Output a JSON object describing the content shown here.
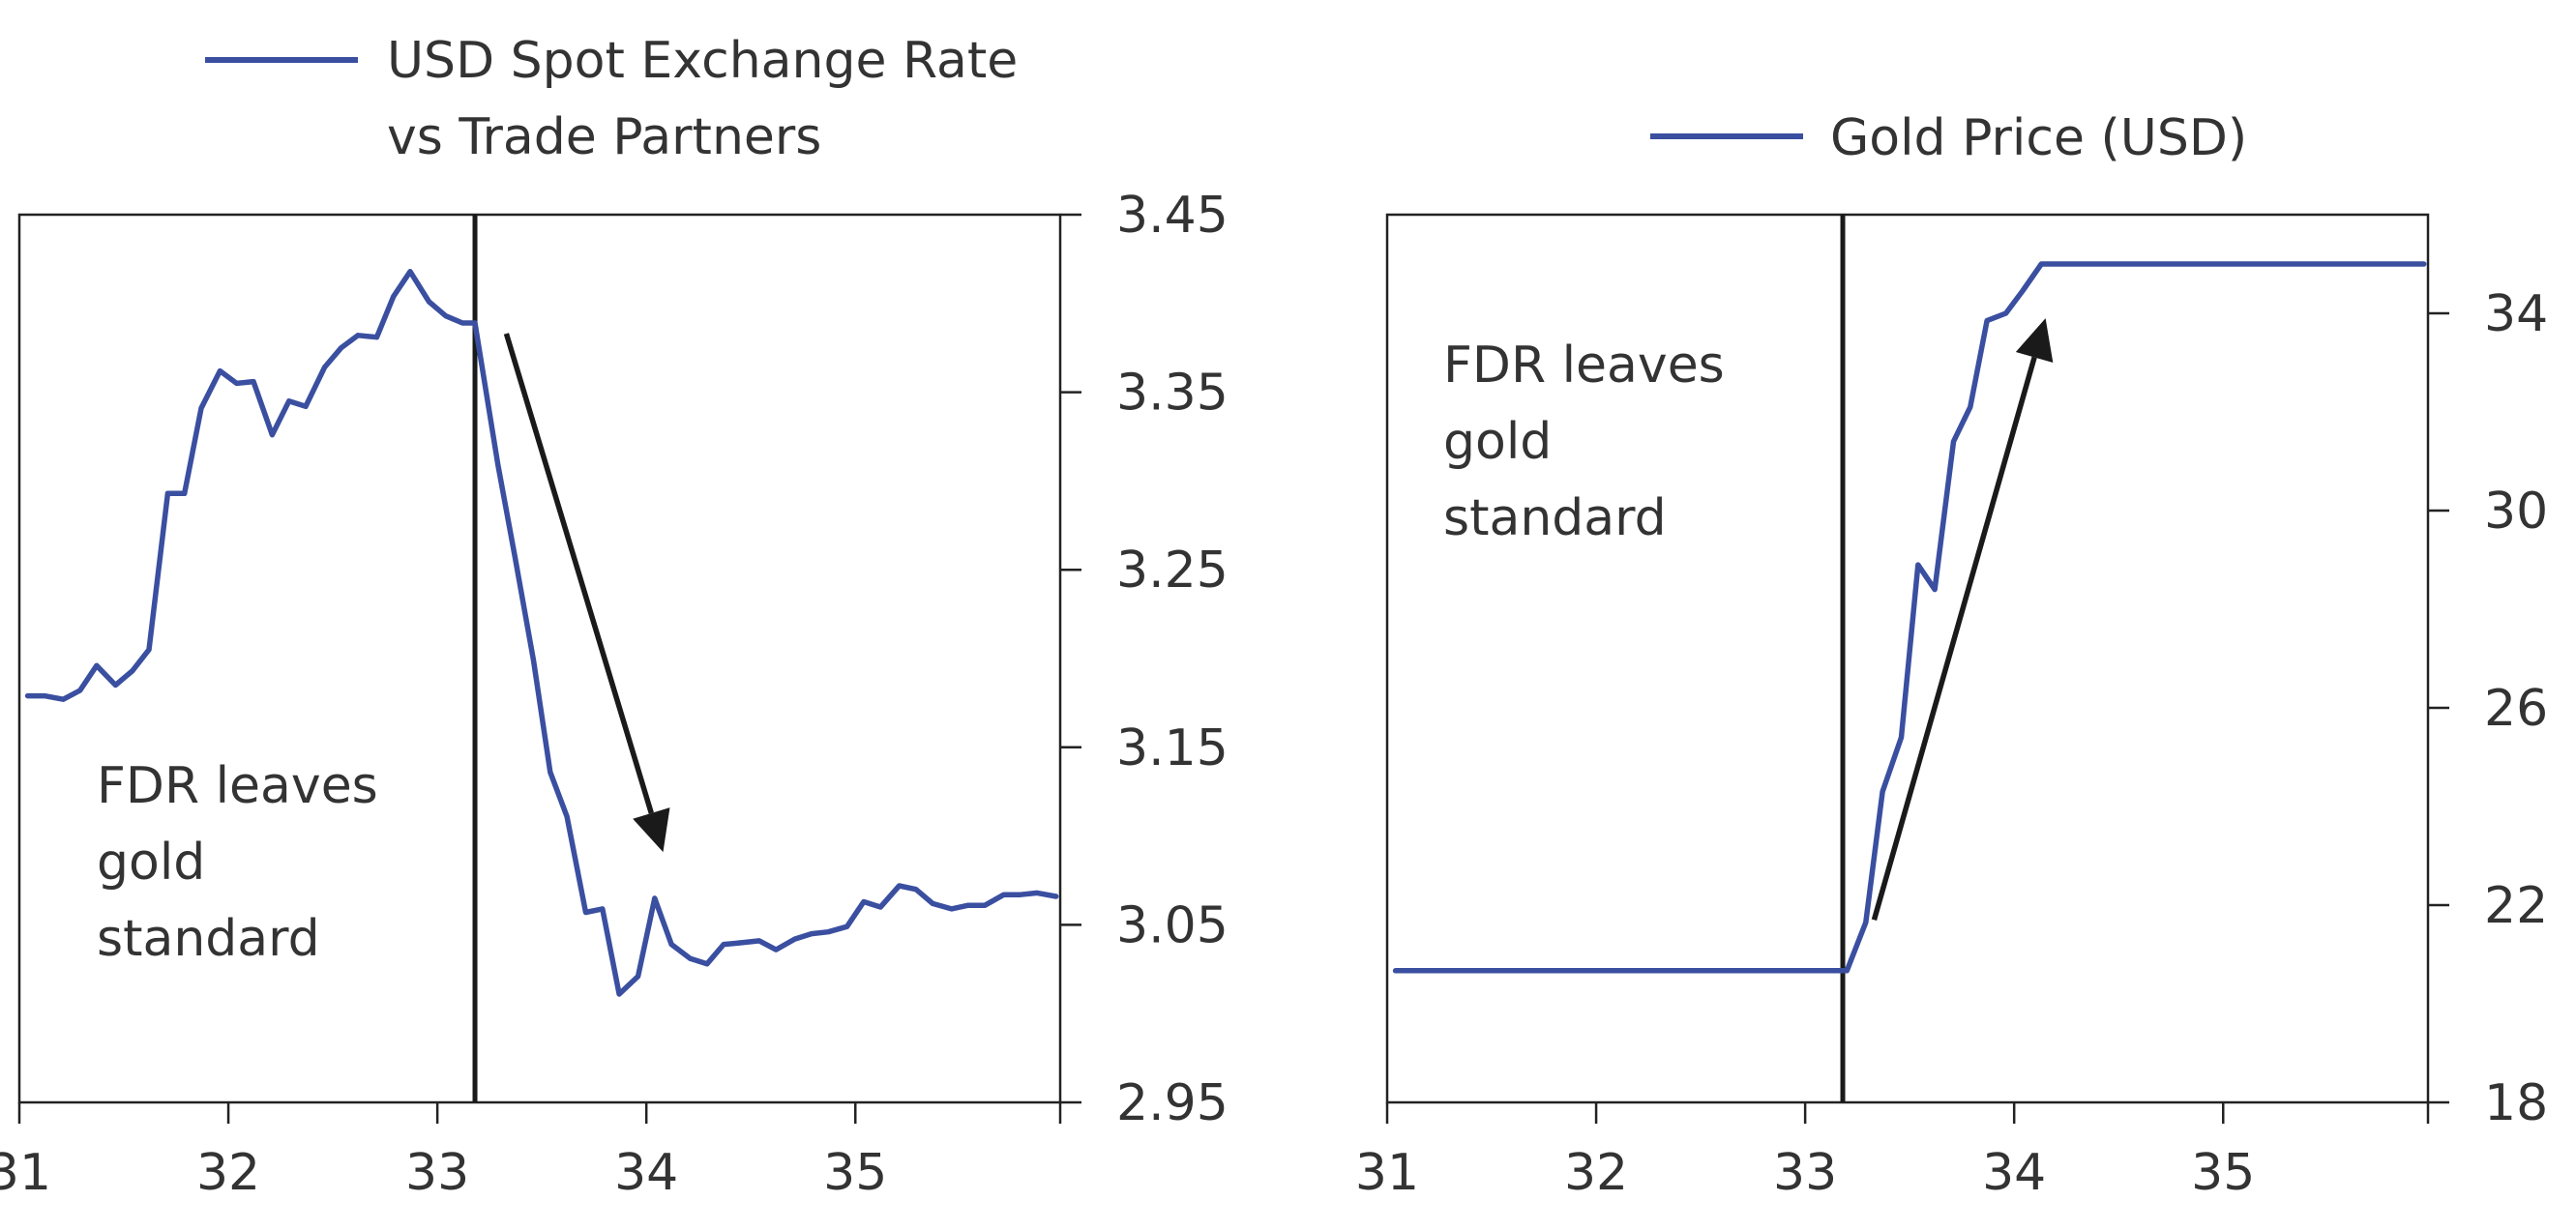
{
  "colors": {
    "series": "#3a4fa0",
    "event_line": "#1a1a1a",
    "arrow": "#1a1a1a"
  },
  "chart_data": [
    {
      "type": "line",
      "legend": [
        "USD Spot Exchange Rate",
        "vs Trade Partners"
      ],
      "legend_position": "top",
      "xlim": [
        31,
        35.98
      ],
      "ylim": [
        2.95,
        3.45
      ],
      "x_ticks": [
        31,
        32,
        33,
        34,
        35
      ],
      "x_tick_labels": [
        "31",
        "32",
        "33",
        "34",
        "35"
      ],
      "y_ticks": [
        3.45,
        3.35,
        3.25,
        3.15,
        3.05,
        2.95
      ],
      "y_tick_labels": [
        "3.45",
        "3.35",
        "3.25",
        "3.15",
        "3.05",
        "2.95"
      ],
      "y_axis_side": "right",
      "event_x": 33.18,
      "annotation": [
        "FDR leaves",
        "gold",
        "standard"
      ],
      "arrow": {
        "from": [
          33.33,
          3.383
        ],
        "to": [
          34.08,
          3.091
        ]
      },
      "series": [
        {
          "x": [
            31.04,
            31.12,
            31.21,
            31.29,
            31.37,
            31.46,
            31.54,
            31.62,
            31.71,
            31.79,
            31.87,
            31.96,
            32.04,
            32.12,
            32.21,
            32.29,
            32.37,
            32.46,
            32.54,
            32.62,
            32.71,
            32.79,
            32.87,
            32.96,
            33.04,
            33.12,
            33.18,
            33.29,
            33.37,
            33.46,
            33.54,
            33.62,
            33.71,
            33.79,
            33.87,
            33.96,
            34.04,
            34.12,
            34.21,
            34.29,
            34.37,
            34.46,
            34.54,
            34.62,
            34.71,
            34.79,
            34.87,
            34.96,
            35.04,
            35.12,
            35.21,
            35.29,
            35.37,
            35.46,
            35.54,
            35.62,
            35.71,
            35.79,
            35.87,
            35.96
          ],
          "values": [
            3.179,
            3.179,
            3.177,
            3.182,
            3.196,
            3.185,
            3.193,
            3.205,
            3.293,
            3.293,
            3.341,
            3.362,
            3.355,
            3.356,
            3.326,
            3.345,
            3.342,
            3.364,
            3.375,
            3.382,
            3.381,
            3.404,
            3.418,
            3.401,
            3.393,
            3.389,
            3.389,
            3.309,
            3.258,
            3.199,
            3.136,
            3.111,
            3.057,
            3.059,
            3.011,
            3.021,
            3.065,
            3.039,
            3.031,
            3.028,
            3.039,
            3.04,
            3.041,
            3.036,
            3.042,
            3.045,
            3.046,
            3.049,
            3.063,
            3.06,
            3.072,
            3.07,
            3.062,
            3.059,
            3.061,
            3.061,
            3.067,
            3.067,
            3.068,
            3.066
          ]
        }
      ]
    },
    {
      "type": "line",
      "legend": [
        "Gold Price (USD)"
      ],
      "legend_position": "top",
      "xlim": [
        31,
        35.98
      ],
      "ylim": [
        18,
        36
      ],
      "x_ticks": [
        31,
        32,
        33,
        34,
        35
      ],
      "x_tick_labels": [
        "31",
        "32",
        "33",
        "34",
        "35"
      ],
      "y_ticks": [
        34,
        30,
        26,
        22,
        18
      ],
      "y_tick_labels": [
        "34",
        "30",
        "26",
        "22",
        "18"
      ],
      "y_axis_side": "right",
      "event_x": 33.18,
      "annotation": [
        "FDR leaves",
        "gold",
        "standard"
      ],
      "arrow": {
        "from": [
          33.33,
          21.7
        ],
        "to": [
          34.15,
          33.9
        ]
      },
      "series": [
        {
          "x": [
            31.04,
            33.2,
            33.29,
            33.37,
            33.46,
            33.54,
            33.62,
            33.71,
            33.79,
            33.87,
            33.96,
            34.04,
            34.13,
            35.96
          ],
          "values": [
            20.67,
            20.67,
            21.65,
            24.3,
            25.4,
            28.9,
            28.4,
            31.4,
            32.1,
            33.85,
            34.0,
            34.45,
            35.0,
            35.0
          ]
        }
      ]
    }
  ]
}
